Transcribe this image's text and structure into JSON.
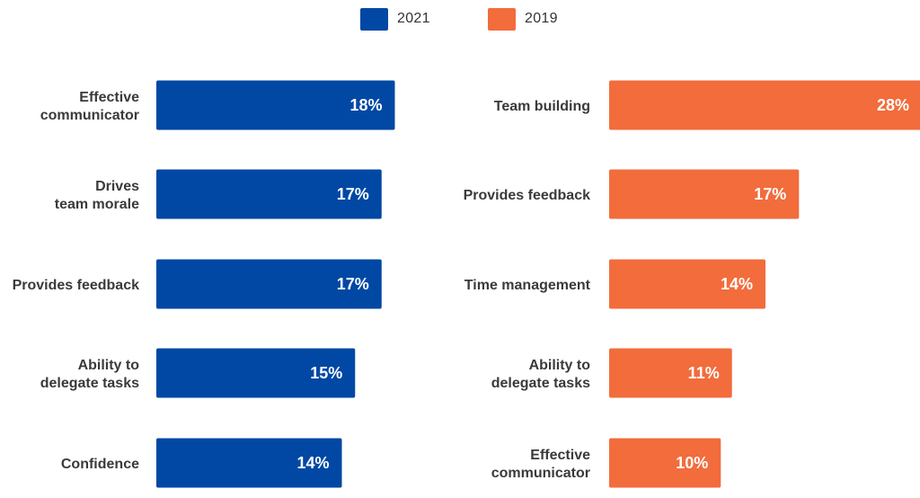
{
  "legend": [
    {
      "label": "2021",
      "color": "#0048A4"
    },
    {
      "label": "2019",
      "color": "#F26C3C"
    }
  ],
  "chart_data": [
    {
      "type": "bar",
      "orientation": "horizontal",
      "series_name": "2021",
      "color": "#0048A4",
      "categories": [
        [
          "Effective",
          "communicator"
        ],
        [
          "Drives",
          "team morale"
        ],
        [
          "Provides feedback"
        ],
        [
          "Ability to",
          "delegate tasks"
        ],
        [
          "Confidence"
        ]
      ],
      "values": [
        18,
        17,
        17,
        15,
        14
      ],
      "value_labels": [
        "18%",
        "17%",
        "17%",
        "15%",
        "14%"
      ],
      "unit": "%",
      "grid": false
    },
    {
      "type": "bar",
      "orientation": "horizontal",
      "series_name": "2019",
      "color": "#F26C3C",
      "categories": [
        [
          "Team building"
        ],
        [
          "Provides feedback"
        ],
        [
          "Time management"
        ],
        [
          "Ability to",
          "delegate tasks"
        ],
        [
          "Effective",
          "communicator"
        ]
      ],
      "values": [
        28,
        17,
        14,
        11,
        10
      ],
      "value_labels": [
        "28%",
        "17%",
        "14%",
        "11%",
        "10%"
      ],
      "unit": "%",
      "grid": false
    }
  ]
}
